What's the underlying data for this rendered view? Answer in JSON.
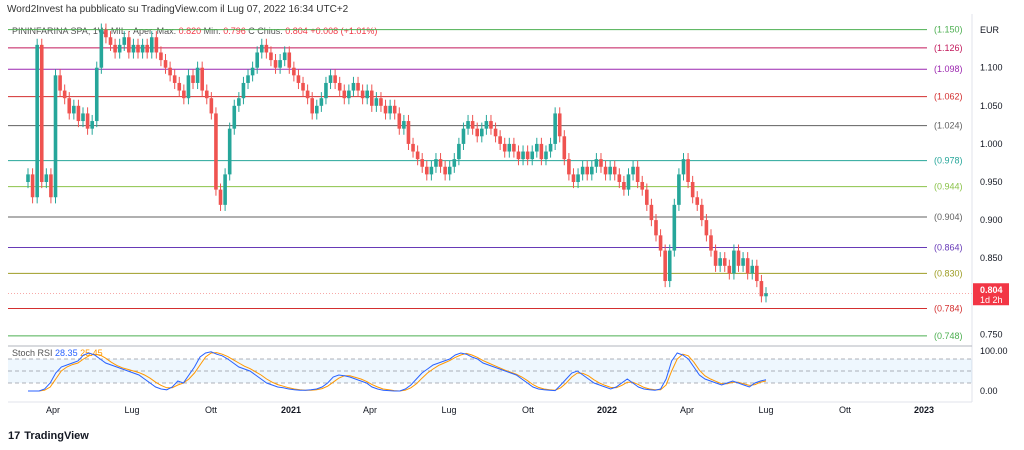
{
  "attribution": "Word2Invest ha pubblicato su TradingView.com il Lug 07, 2022 16:34 UTC+2",
  "footer": {
    "brand": "TradingView",
    "mark": "17"
  },
  "legend": {
    "symbol": "PININFARINA SPA, 1W, MIL",
    "open_label": "Aper.",
    "open": "",
    "high_label": "Max.",
    "high": "0.820",
    "low_label": "Min.",
    "low": "0.796",
    "close_label": "C",
    "close_word": "Chius.",
    "close": "0.804",
    "change": "+0.008 (+1.01%)"
  },
  "rsi_legend": {
    "name": "Stoch RSI",
    "k": "28.35",
    "d": "25.45"
  },
  "chart_data": {
    "type": "candlestick",
    "currency": "EUR",
    "y_ticks": [
      0.75,
      0.8,
      0.85,
      0.9,
      0.95,
      1.0,
      1.05,
      1.1
    ],
    "y_tick_labels": [
      "0.750",
      "0.800",
      "0.850",
      "0.900",
      "0.950",
      "1.000",
      "1.050",
      "1.100"
    ],
    "ylim": [
      0.74,
      1.16
    ],
    "last_price": {
      "value": "0.804",
      "countdown": "1d 2h",
      "color": "#f23645"
    },
    "x_labels": [
      "Apr",
      "Lug",
      "Ott",
      "2021",
      "Apr",
      "Lug",
      "Ott",
      "2022",
      "Apr",
      "Lug",
      "Ott",
      "2023"
    ],
    "x_label_bold": [
      "2021",
      "2022",
      "2023"
    ],
    "fib_levels": [
      {
        "value": 1.15,
        "label": "(1.150)",
        "color": "#4caf50"
      },
      {
        "value": 1.126,
        "label": "(1.126)",
        "color": "#c2185b"
      },
      {
        "value": 1.098,
        "label": "(1.098)",
        "color": "#9c27b0"
      },
      {
        "value": 1.062,
        "label": "(1.062)",
        "color": "#d32f2f"
      },
      {
        "value": 1.024,
        "label": "(1.024)",
        "color": "#616161"
      },
      {
        "value": 0.978,
        "label": "(0.978)",
        "color": "#26a69a"
      },
      {
        "value": 0.944,
        "label": "(0.944)",
        "color": "#8bc34a"
      },
      {
        "value": 0.904,
        "label": "(0.904)",
        "color": "#616161"
      },
      {
        "value": 0.864,
        "label": "(0.864)",
        "color": "#673ab7"
      },
      {
        "value": 0.83,
        "label": "(0.830)",
        "color": "#9e9d24"
      },
      {
        "value": 0.784,
        "label": "(0.784)",
        "color": "#d32f2f"
      },
      {
        "value": 0.748,
        "label": "(0.748)",
        "color": "#4caf50"
      }
    ],
    "candles_closes": [
      0.96,
      0.93,
      1.13,
      0.95,
      0.96,
      0.93,
      1.09,
      1.07,
      1.06,
      1.04,
      1.05,
      1.03,
      1.04,
      1.02,
      1.03,
      1.1,
      1.15,
      1.14,
      1.13,
      1.12,
      1.13,
      1.14,
      1.12,
      1.13,
      1.12,
      1.13,
      1.12,
      1.14,
      1.12,
      1.11,
      1.1,
      1.09,
      1.08,
      1.07,
      1.06,
      1.09,
      1.08,
      1.1,
      1.07,
      1.06,
      1.04,
      0.94,
      0.92,
      0.96,
      1.02,
      1.05,
      1.06,
      1.08,
      1.09,
      1.1,
      1.12,
      1.13,
      1.12,
      1.11,
      1.1,
      1.11,
      1.12,
      1.1,
      1.09,
      1.08,
      1.07,
      1.06,
      1.04,
      1.05,
      1.06,
      1.08,
      1.09,
      1.08,
      1.07,
      1.06,
      1.07,
      1.08,
      1.07,
      1.06,
      1.07,
      1.05,
      1.06,
      1.05,
      1.04,
      1.05,
      1.04,
      1.02,
      1.03,
      1.0,
      0.99,
      0.98,
      0.97,
      0.96,
      0.97,
      0.98,
      0.97,
      0.96,
      0.97,
      0.98,
      1.0,
      1.02,
      1.03,
      1.02,
      1.01,
      1.02,
      1.03,
      1.02,
      1.01,
      1.0,
      0.99,
      1.0,
      0.99,
      0.98,
      0.99,
      0.98,
      0.99,
      1.0,
      0.98,
      0.99,
      1.0,
      1.04,
      1.01,
      0.98,
      0.96,
      0.95,
      0.96,
      0.97,
      0.96,
      0.97,
      0.98,
      0.97,
      0.96,
      0.97,
      0.96,
      0.95,
      0.94,
      0.96,
      0.97,
      0.95,
      0.94,
      0.92,
      0.9,
      0.88,
      0.86,
      0.82,
      0.86,
      0.92,
      0.96,
      0.98,
      0.95,
      0.93,
      0.92,
      0.9,
      0.88,
      0.86,
      0.84,
      0.85,
      0.84,
      0.83,
      0.86,
      0.84,
      0.85,
      0.83,
      0.84,
      0.82,
      0.8,
      0.804
    ],
    "stoch_ticks": [
      0,
      50,
      100
    ],
    "stoch_tick_labels": [
      "0.00",
      "",
      "100.00"
    ],
    "stoch_bands": [
      20,
      50,
      80
    ],
    "stoch_k": [
      0,
      0,
      0,
      5,
      20,
      45,
      60,
      65,
      70,
      75,
      90,
      95,
      90,
      80,
      70,
      65,
      60,
      55,
      50,
      45,
      40,
      30,
      20,
      10,
      5,
      3,
      10,
      25,
      20,
      40,
      60,
      85,
      95,
      98,
      92,
      88,
      80,
      70,
      60,
      55,
      50,
      40,
      30,
      20,
      15,
      10,
      8,
      5,
      3,
      2,
      2,
      3,
      5,
      10,
      20,
      35,
      40,
      38,
      35,
      30,
      25,
      20,
      10,
      5,
      2,
      1,
      0,
      0,
      5,
      15,
      30,
      45,
      55,
      65,
      70,
      75,
      80,
      90,
      95,
      92,
      85,
      80,
      70,
      65,
      60,
      55,
      50,
      45,
      40,
      30,
      20,
      10,
      5,
      3,
      2,
      1,
      15,
      30,
      45,
      50,
      40,
      30,
      20,
      15,
      10,
      5,
      10,
      20,
      30,
      20,
      10,
      5,
      3,
      2,
      5,
      30,
      75,
      95,
      90,
      80,
      60,
      40,
      30,
      25,
      20,
      15,
      20,
      25,
      20,
      15,
      10,
      20,
      25,
      28
    ],
    "stoch_d": [
      0,
      0,
      0,
      2,
      10,
      30,
      50,
      60,
      66,
      70,
      80,
      88,
      92,
      90,
      82,
      72,
      64,
      58,
      54,
      50,
      46,
      40,
      32,
      22,
      14,
      8,
      8,
      15,
      20,
      30,
      45,
      65,
      85,
      95,
      96,
      92,
      86,
      78,
      70,
      62,
      56,
      48,
      40,
      30,
      22,
      16,
      12,
      8,
      5,
      3,
      2,
      2,
      3,
      6,
      12,
      22,
      32,
      38,
      38,
      34,
      30,
      24,
      16,
      10,
      5,
      3,
      1,
      0,
      2,
      8,
      18,
      32,
      45,
      55,
      64,
      70,
      76,
      84,
      90,
      94,
      90,
      84,
      76,
      70,
      64,
      58,
      52,
      47,
      42,
      35,
      26,
      16,
      9,
      5,
      3,
      2,
      8,
      20,
      35,
      45,
      44,
      38,
      28,
      20,
      14,
      9,
      8,
      14,
      22,
      22,
      16,
      9,
      5,
      3,
      3,
      15,
      50,
      80,
      92,
      88,
      72,
      52,
      38,
      30,
      24,
      18,
      18,
      22,
      22,
      18,
      14,
      16,
      22,
      25
    ]
  }
}
